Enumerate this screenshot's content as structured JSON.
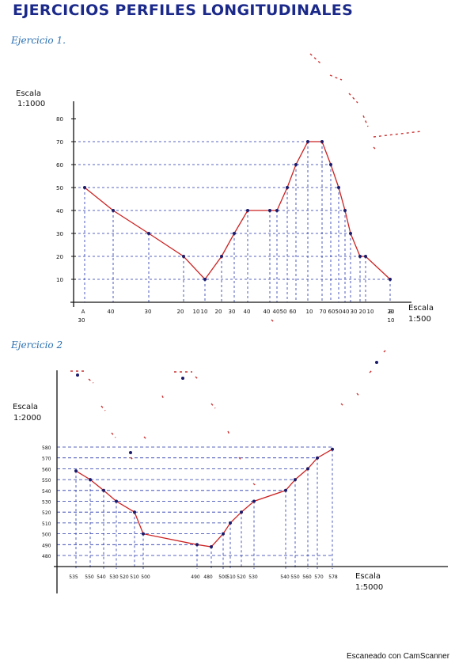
{
  "title": "EJERCICIOS PERFILES LONGITUDINALES",
  "exercise1": {
    "title": "Ejercicio 1.",
    "v_scale": [
      "Escala",
      "1:1000"
    ],
    "h_scale": [
      "Escala",
      "1:500"
    ],
    "y_ticks": [
      "10",
      "20",
      "30",
      "40",
      "50",
      "60",
      "70",
      "80"
    ],
    "x_labels": [
      "A",
      "40",
      "30",
      "20",
      "10",
      "10",
      "20",
      "30",
      "40",
      "40",
      "40",
      "50",
      "60",
      "10",
      "70",
      "60",
      "50",
      "40",
      "30",
      "20",
      "10",
      "20",
      "B"
    ],
    "x_labels_2": [
      "30",
      "10"
    ],
    "profile_elevations": [
      50,
      40,
      30,
      20,
      10,
      20,
      30,
      40,
      40,
      40,
      50,
      60,
      70,
      70,
      60,
      50,
      40,
      30,
      20,
      20,
      10
    ]
  },
  "exercise2": {
    "title": "Ejercicio 2",
    "v_scale": [
      "Escala",
      "1:2000"
    ],
    "h_scale": [
      "Escala",
      "1:5000"
    ],
    "y_ticks": [
      "580",
      "570",
      "560",
      "550",
      "540",
      "530",
      "520",
      "510",
      "500",
      "490",
      "480"
    ],
    "x_labels": [
      "535",
      "550",
      "540",
      "530",
      "520",
      "510",
      "500",
      "490",
      "480",
      "500",
      "510",
      "520",
      "530",
      "540",
      "550",
      "560",
      "570",
      "578"
    ],
    "profile_elevations": [
      558,
      550,
      540,
      530,
      520,
      510,
      500,
      490,
      488,
      500,
      510,
      520,
      530,
      540,
      550,
      560,
      570,
      578
    ]
  },
  "footer": "Escaneado con CamScanner",
  "colors": {
    "ink": "#111111",
    "title": "#1b2a8a",
    "dash": "#2233aa",
    "profile": "#cc2222",
    "point": "#1a1a6a"
  }
}
